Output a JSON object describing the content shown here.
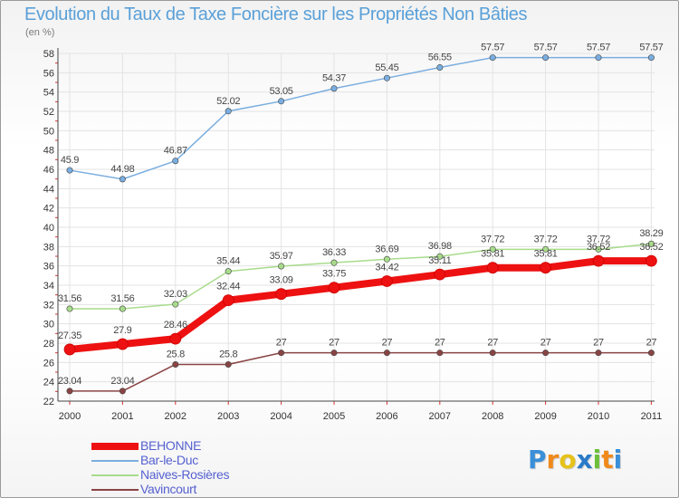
{
  "title": "Evolution du Taux de Taxe Foncière sur les Propriétés Non Bâties",
  "subtitle": "(en %)",
  "logo": {
    "letters": [
      "P",
      "r",
      "o",
      "x",
      "i",
      "t",
      "i"
    ],
    "colors": [
      "#3a8fd8",
      "#f08a1c",
      "#e6c21b",
      "#2a7ac8",
      "#6cbf3a",
      "#f08a1c",
      "#3a8fd8"
    ]
  },
  "chart_data": {
    "type": "line",
    "title": "Evolution du Taux de Taxe Foncière sur les Propriétés Non Bâties",
    "ylabel": "(en %)",
    "xlabel": "",
    "ylim": [
      22,
      58
    ],
    "yticks": [
      22,
      24,
      26,
      28,
      30,
      32,
      34,
      36,
      38,
      40,
      42,
      44,
      46,
      48,
      50,
      52,
      54,
      56,
      58
    ],
    "grid": true,
    "legend_placement": "bottom-left",
    "x": [
      "2000",
      "2001",
      "2002",
      "2003",
      "2004",
      "2005",
      "2006",
      "2007",
      "2008",
      "2009",
      "2010",
      "2011"
    ],
    "series": [
      {
        "name": "BEHONNE",
        "color": "#ee1111",
        "values": [
          27.35,
          27.9,
          28.46,
          32.44,
          33.09,
          33.75,
          34.42,
          35.11,
          35.81,
          35.81,
          36.52,
          36.52
        ],
        "labels": [
          "27.35",
          "27.9",
          "28.46",
          "32.44",
          "33.09",
          "33.75",
          "34.42",
          "35.11",
          "35.81",
          "35.81",
          "36.52",
          "36.52"
        ]
      },
      {
        "name": "Bar-le-Duc",
        "color": "#7aaee0",
        "values": [
          45.9,
          44.98,
          46.87,
          52.02,
          53.05,
          54.37,
          55.45,
          56.55,
          57.57,
          57.57,
          57.57,
          57.57
        ],
        "labels": [
          "45.9",
          "44.98",
          "46.87",
          "52.02",
          "53.05",
          "54.37",
          "55.45",
          "56.55",
          "57.57",
          "57.57",
          "57.57",
          "57.57"
        ]
      },
      {
        "name": "Naives-Rosières",
        "color": "#a8dc8c",
        "values": [
          31.56,
          31.56,
          32.03,
          35.44,
          35.97,
          36.33,
          36.69,
          36.98,
          37.72,
          37.72,
          37.72,
          38.29
        ],
        "labels": [
          "31.56",
          "31.56",
          "32.03",
          "35.44",
          "35.97",
          "36.33",
          "36.69",
          "36.98",
          "37.72",
          "37.72",
          "37.72",
          "38.29"
        ]
      },
      {
        "name": "Vavincourt",
        "color": "#8a4444",
        "values": [
          23.04,
          23.04,
          25.8,
          25.8,
          27,
          27,
          27,
          27,
          27,
          27,
          27,
          27
        ],
        "labels": [
          "23.04",
          "23.04",
          "25.8",
          "25.8",
          "27",
          "27",
          "27",
          "27",
          "27",
          "27",
          "27",
          "27"
        ]
      }
    ]
  }
}
